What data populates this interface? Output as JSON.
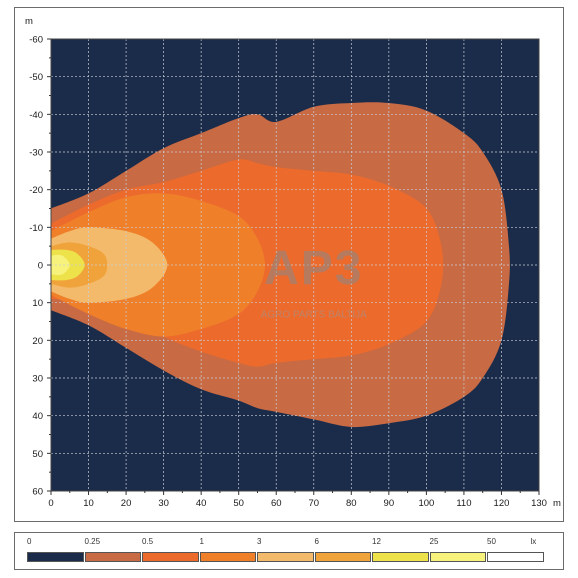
{
  "chart_data": {
    "type": "heatmap",
    "description_units": {
      "x": "m",
      "y": "m"
    },
    "xlabel": "m",
    "ylabel": "m",
    "xlim": [
      0,
      130
    ],
    "ylim": [
      -60,
      60
    ],
    "x_ticks": [
      0,
      10,
      20,
      30,
      40,
      50,
      60,
      70,
      80,
      90,
      100,
      110,
      120,
      130
    ],
    "y_ticks": [
      -60,
      -50,
      -40,
      -30,
      -20,
      -10,
      0,
      10,
      20,
      30,
      40,
      50,
      60
    ],
    "y_axis_inverted": true,
    "grid": true,
    "background_color": "#1b2c4b",
    "legend": {
      "unit": "lx",
      "placement": "bottom",
      "entries": [
        {
          "from": "0",
          "to": "0.25",
          "color": "#1b2c4b"
        },
        {
          "from": "0.25",
          "to": "0.5",
          "color": "#c86a43"
        },
        {
          "from": "0.5",
          "to": "1",
          "color": "#ec6a2c"
        },
        {
          "from": "1",
          "to": "3",
          "color": "#f07f2a"
        },
        {
          "from": "3",
          "to": "6",
          "color": "#f3ba6b"
        },
        {
          "from": "6",
          "to": "12",
          "color": "#f1a33b"
        },
        {
          "from": "12",
          "to": "25",
          "color": "#eee24a"
        },
        {
          "from": "25",
          "to": "50",
          "color": "#f7f27b"
        },
        {
          "from": "50",
          "to": "",
          "color": "#ffffff"
        }
      ]
    },
    "isolux_zones": [
      {
        "level_lx": 0.25,
        "color": "#c86a43",
        "outline": [
          [
            0,
            -15
          ],
          [
            10,
            -19
          ],
          [
            20,
            -25
          ],
          [
            30,
            -31
          ],
          [
            40,
            -35
          ],
          [
            50,
            -39
          ],
          [
            55,
            -40
          ],
          [
            60,
            -38
          ],
          [
            70,
            -42
          ],
          [
            80,
            -43
          ],
          [
            90,
            -43
          ],
          [
            100,
            -41
          ],
          [
            110,
            -35
          ],
          [
            115,
            -30
          ],
          [
            120,
            -20
          ],
          [
            122,
            -5
          ],
          [
            122,
            5
          ],
          [
            120,
            20
          ],
          [
            115,
            30
          ],
          [
            110,
            35
          ],
          [
            100,
            40
          ],
          [
            90,
            42
          ],
          [
            80,
            43
          ],
          [
            70,
            41
          ],
          [
            60,
            39
          ],
          [
            55,
            38
          ],
          [
            50,
            36
          ],
          [
            40,
            33
          ],
          [
            30,
            28
          ],
          [
            20,
            22
          ],
          [
            10,
            16
          ],
          [
            0,
            12
          ]
        ]
      },
      {
        "level_lx": 0.5,
        "color": "#ec6a2c",
        "outline": [
          [
            0,
            -11
          ],
          [
            10,
            -16
          ],
          [
            20,
            -20
          ],
          [
            30,
            -22
          ],
          [
            40,
            -25
          ],
          [
            50,
            -28
          ],
          [
            55,
            -27
          ],
          [
            60,
            -26
          ],
          [
            70,
            -25
          ],
          [
            80,
            -24
          ],
          [
            90,
            -21
          ],
          [
            100,
            -15
          ],
          [
            104,
            -5
          ],
          [
            104,
            5
          ],
          [
            100,
            15
          ],
          [
            90,
            21
          ],
          [
            80,
            24
          ],
          [
            70,
            25
          ],
          [
            60,
            26
          ],
          [
            55,
            27
          ],
          [
            50,
            26
          ],
          [
            40,
            23
          ],
          [
            30,
            19
          ],
          [
            20,
            14
          ],
          [
            10,
            10
          ],
          [
            0,
            9
          ]
        ]
      },
      {
        "level_lx": 1,
        "color": "#f07f2a",
        "outline": [
          [
            0,
            -9
          ],
          [
            10,
            -14
          ],
          [
            20,
            -18
          ],
          [
            30,
            -19
          ],
          [
            40,
            -17
          ],
          [
            50,
            -13
          ],
          [
            55,
            -7
          ],
          [
            57,
            0
          ],
          [
            55,
            7
          ],
          [
            50,
            13
          ],
          [
            40,
            17
          ],
          [
            30,
            19
          ],
          [
            20,
            17
          ],
          [
            10,
            13
          ],
          [
            0,
            8
          ]
        ]
      },
      {
        "level_lx": 3,
        "color": "#f3ba6b",
        "outline": [
          [
            0,
            -7
          ],
          [
            5,
            -9
          ],
          [
            10,
            -10
          ],
          [
            20,
            -9
          ],
          [
            27,
            -6
          ],
          [
            31,
            0
          ],
          [
            27,
            6
          ],
          [
            20,
            9
          ],
          [
            10,
            10
          ],
          [
            5,
            9
          ],
          [
            0,
            7
          ]
        ]
      },
      {
        "level_lx": 6,
        "color": "#f1a33b",
        "outline": [
          [
            0,
            -5
          ],
          [
            5,
            -6
          ],
          [
            10,
            -5
          ],
          [
            14,
            -3
          ],
          [
            15,
            0
          ],
          [
            14,
            3
          ],
          [
            10,
            5
          ],
          [
            5,
            6
          ],
          [
            0,
            5
          ]
        ]
      },
      {
        "level_lx": 12,
        "color": "#eee24a",
        "outline": [
          [
            0,
            -4
          ],
          [
            4,
            -4
          ],
          [
            7,
            -3
          ],
          [
            9,
            0
          ],
          [
            7,
            3
          ],
          [
            4,
            4
          ],
          [
            0,
            4
          ]
        ]
      },
      {
        "level_lx": 25,
        "color": "#f7f27b",
        "outline": [
          [
            0,
            -2.5
          ],
          [
            3,
            -2.5
          ],
          [
            5,
            0
          ],
          [
            3,
            2.5
          ],
          [
            0,
            2.5
          ]
        ]
      }
    ]
  },
  "watermark": {
    "logo": "AP3",
    "tagline": "AGRO PARTS BALTIJA"
  }
}
